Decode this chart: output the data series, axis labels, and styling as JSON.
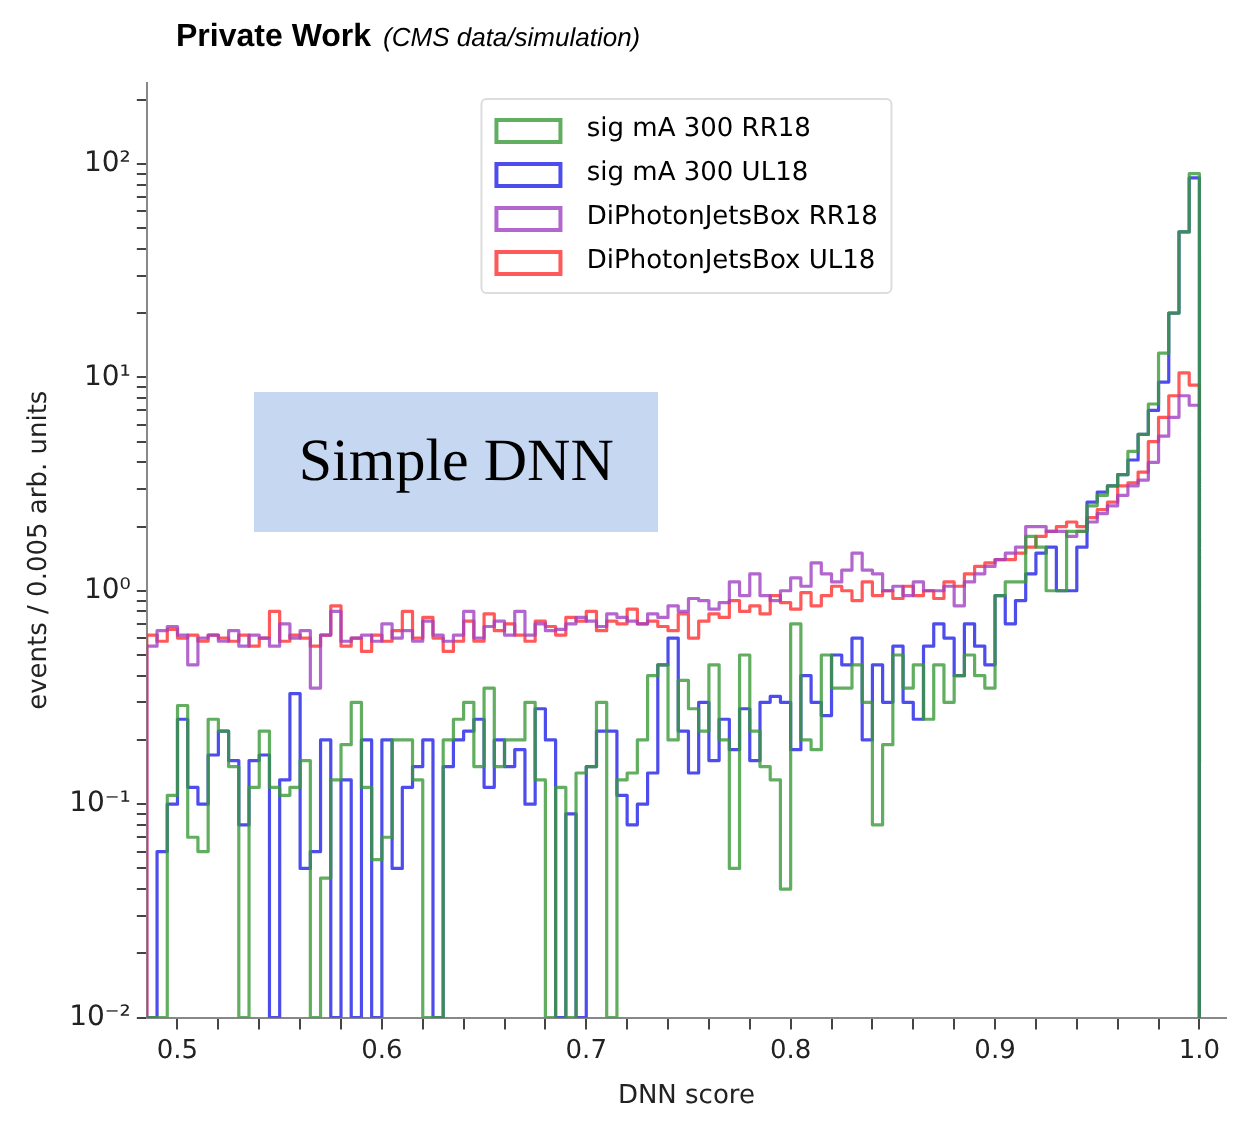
{
  "chart_data": {
    "type": "histogram",
    "title": "Private Work",
    "subtitle": "(CMS data/simulation)",
    "xlabel": "DNN score",
    "ylabel": "events / 0.005 arb. units",
    "annotations": [
      "Simple DNN"
    ],
    "log": "y",
    "legend": "top",
    "xlim": [
      0.485,
      1.013
    ],
    "ylim": [
      0.01,
      240
    ],
    "xticks": [
      0.5,
      {
        "value": 0.52,
        "label": null
      },
      {
        "value": 0.54,
        "label": null
      },
      {
        "value": 0.56,
        "label": null
      },
      {
        "value": 0.58,
        "label": null
      },
      0.6,
      {
        "value": 0.62,
        "label": null
      },
      {
        "value": 0.64,
        "label": null
      },
      {
        "value": 0.66,
        "label": null
      },
      {
        "value": 0.68,
        "label": null
      },
      0.7,
      {
        "value": 0.72,
        "label": null
      },
      {
        "value": 0.74,
        "label": null
      },
      {
        "value": 0.76,
        "label": null
      },
      {
        "value": 0.78,
        "label": null
      },
      0.8,
      {
        "value": 0.82,
        "label": null
      },
      {
        "value": 0.84,
        "label": null
      },
      {
        "value": 0.86,
        "label": null
      },
      {
        "value": 0.88,
        "label": null
      },
      0.9,
      {
        "value": 0.92,
        "label": null
      },
      {
        "value": 0.94,
        "label": null
      },
      {
        "value": 0.96,
        "label": null
      },
      {
        "value": 0.98,
        "label": null
      },
      {
        "value": 1.0,
        "label": "1.0"
      }
    ],
    "yticks": [
      {
        "value": 0.01,
        "label": "10⁻²"
      },
      {
        "value": 0.02,
        "label": null
      },
      {
        "value": 0.03,
        "label": null
      },
      {
        "value": 0.04,
        "label": null
      },
      {
        "value": 0.05,
        "label": null
      },
      {
        "value": 0.06,
        "label": null
      },
      {
        "value": 0.07,
        "label": null
      },
      {
        "value": 0.08,
        "label": null
      },
      {
        "value": 0.09,
        "label": null
      },
      {
        "value": 0.1,
        "label": "10⁻¹"
      },
      {
        "value": 0.2,
        "label": null
      },
      {
        "value": 0.3,
        "label": null
      },
      {
        "value": 0.4,
        "label": null
      },
      {
        "value": 0.5,
        "label": null
      },
      {
        "value": 0.6,
        "label": null
      },
      {
        "value": 0.7,
        "label": null
      },
      {
        "value": 0.8,
        "label": null
      },
      {
        "value": 0.9,
        "label": null
      },
      {
        "value": 1,
        "label": "10⁰"
      },
      {
        "value": 2,
        "label": null
      },
      {
        "value": 3,
        "label": null
      },
      {
        "value": 4,
        "label": null
      },
      {
        "value": 5,
        "label": null
      },
      {
        "value": 6,
        "label": null
      },
      {
        "value": 7,
        "label": null
      },
      {
        "value": 8,
        "label": null
      },
      {
        "value": 9,
        "label": null
      },
      {
        "value": 10,
        "label": "10¹"
      },
      {
        "value": 20,
        "label": null
      },
      {
        "value": 30,
        "label": null
      },
      {
        "value": 40,
        "label": null
      },
      {
        "value": 50,
        "label": null
      },
      {
        "value": 60,
        "label": null
      },
      {
        "value": 70,
        "label": null
      },
      {
        "value": 80,
        "label": null
      },
      {
        "value": 90,
        "label": null
      },
      {
        "value": 100,
        "label": "10²"
      },
      {
        "value": 200,
        "label": null
      }
    ],
    "bins": [
      0.485,
      0.49,
      0.495,
      0.5,
      0.505,
      0.51,
      0.515,
      0.52,
      0.525,
      0.53,
      0.535,
      0.54,
      0.545,
      0.55,
      0.555,
      0.56,
      0.565,
      0.57,
      0.575,
      0.58,
      0.585,
      0.59,
      0.595,
      0.6,
      0.605,
      0.61,
      0.615,
      0.62,
      0.625,
      0.63,
      0.635,
      0.64,
      0.645,
      0.65,
      0.655,
      0.66,
      0.665,
      0.67,
      0.675,
      0.68,
      0.685,
      0.69,
      0.695,
      0.7,
      0.705,
      0.71,
      0.715,
      0.72,
      0.725,
      0.73,
      0.735,
      0.74,
      0.745,
      0.75,
      0.755,
      0.76,
      0.765,
      0.77,
      0.775,
      0.78,
      0.785,
      0.79,
      0.795,
      0.8,
      0.805,
      0.81,
      0.815,
      0.82,
      0.825,
      0.83,
      0.835,
      0.84,
      0.845,
      0.85,
      0.855,
      0.86,
      0.865,
      0.87,
      0.875,
      0.88,
      0.885,
      0.89,
      0.895,
      0.9,
      0.905,
      0.91,
      0.915,
      0.92,
      0.925,
      0.93,
      0.935,
      0.94,
      0.945,
      0.95,
      0.955,
      0.96,
      0.965,
      0.97,
      0.975,
      0.98,
      0.985,
      0.99,
      0.995,
      1.0
    ],
    "series": [
      {
        "name": "sig mA 300 RR18",
        "color": "#3a9a3a",
        "values": [
          null,
          null,
          0.11,
          0.29,
          0.07,
          0.06,
          0.25,
          0.22,
          0.15,
          null,
          0.12,
          0.22,
          0.12,
          0.11,
          0.12,
          0.16,
          null,
          0.045,
          0.13,
          0.19,
          0.3,
          0.12,
          0.055,
          0.07,
          0.2,
          0.2,
          0.13,
          null,
          null,
          0.2,
          0.25,
          0.3,
          0.15,
          0.35,
          0.15,
          0.2,
          0.2,
          0.3,
          0.13,
          null,
          0.12,
          null,
          0.14,
          0.15,
          0.3,
          null,
          0.13,
          0.14,
          0.2,
          0.4,
          0.45,
          0.2,
          0.38,
          0.28,
          0.22,
          0.45,
          0.2,
          0.05,
          0.5,
          0.22,
          0.15,
          0.13,
          0.04,
          0.7,
          0.2,
          0.18,
          0.5,
          0.35,
          0.35,
          0.45,
          0.3,
          0.08,
          0.19,
          0.5,
          0.35,
          0.45,
          0.25,
          0.45,
          0.3,
          0.4,
          0.5,
          0.4,
          0.35,
          0.95,
          1.1,
          1.1,
          1.8,
          1.6,
          1,
          1,
          1.9,
          1.9,
          2.5,
          2.8,
          3.1,
          3.5,
          4.5,
          5.4,
          7.5,
          13,
          20,
          48,
          90
        ]
      },
      {
        "name": "sig mA 300 UL18",
        "color": "#2020e8",
        "values": [
          null,
          0.06,
          0.1,
          0.25,
          0.12,
          0.1,
          0.17,
          0.22,
          0.16,
          0.08,
          0.16,
          0.17,
          null,
          0.13,
          0.33,
          0.05,
          0.06,
          0.2,
          null,
          0.13,
          null,
          0.2,
          null,
          0.2,
          0.05,
          0.12,
          0.15,
          0.2,
          null,
          0.15,
          0.2,
          0.22,
          0.25,
          0.12,
          0.2,
          0.15,
          0.18,
          0.1,
          0.28,
          0.2,
          null,
          0.09,
          null,
          0.15,
          0.22,
          0.22,
          0.11,
          0.08,
          0.1,
          0.14,
          0.45,
          0.6,
          0.22,
          0.14,
          0.3,
          0.16,
          0.25,
          0.18,
          0.28,
          0.16,
          0.3,
          0.32,
          0.3,
          0.18,
          0.4,
          0.3,
          0.26,
          0.5,
          0.45,
          0.6,
          0.2,
          0.45,
          0.3,
          0.55,
          0.3,
          0.25,
          0.55,
          0.7,
          0.6,
          0.4,
          0.7,
          0.55,
          0.45,
          0.95,
          0.7,
          0.9,
          1.2,
          1.5,
          1.6,
          1,
          1,
          1.6,
          2.6,
          2.9,
          3.1,
          3.5,
          4.1,
          5.4,
          7,
          9.5,
          20,
          48,
          86
        ]
      },
      {
        "name": "DiPhotonJetsBox RR18",
        "color": "#a040c0",
        "values": [
          0.55,
          0.65,
          0.68,
          0.62,
          0.45,
          0.6,
          0.62,
          0.58,
          0.65,
          0.55,
          0.62,
          0.6,
          0.55,
          0.7,
          0.6,
          0.65,
          0.35,
          0.62,
          0.8,
          0.58,
          0.6,
          0.62,
          0.58,
          0.7,
          0.6,
          0.65,
          0.58,
          0.72,
          0.62,
          0.58,
          0.62,
          0.8,
          0.6,
          0.68,
          0.72,
          0.62,
          0.8,
          0.62,
          0.7,
          0.65,
          0.66,
          0.7,
          0.75,
          0.72,
          0.68,
          0.78,
          0.75,
          0.72,
          0.7,
          0.78,
          0.75,
          0.85,
          0.8,
          0.92,
          0.9,
          0.82,
          0.88,
          1.1,
          0.95,
          1.2,
          0.95,
          0.9,
          1,
          1.15,
          1.05,
          1.35,
          1.2,
          1.1,
          1.25,
          1.5,
          1.25,
          1.2,
          1,
          1.05,
          0.95,
          1.1,
          1,
          1,
          1.05,
          0.85,
          1.1,
          1.2,
          1.3,
          1.4,
          1.5,
          1.6,
          2,
          2,
          1.9,
          1.9,
          1.8,
          1.9,
          2.1,
          2.3,
          2.5,
          2.8,
          3.1,
          3.3,
          4,
          5.3,
          6.5,
          8.2,
          7.4
        ]
      },
      {
        "name": "DiPhotonJetsBox UL18",
        "color": "#ff3030",
        "values": [
          0.62,
          0.58,
          0.66,
          0.6,
          0.62,
          0.58,
          0.62,
          0.6,
          0.58,
          0.62,
          0.55,
          0.6,
          0.8,
          0.58,
          0.62,
          0.6,
          0.55,
          0.62,
          0.85,
          0.55,
          0.6,
          0.52,
          0.62,
          0.58,
          0.65,
          0.8,
          0.6,
          0.75,
          0.6,
          0.52,
          0.58,
          0.72,
          0.58,
          0.78,
          0.65,
          0.7,
          0.62,
          0.58,
          0.72,
          0.68,
          0.62,
          0.75,
          0.72,
          0.8,
          0.65,
          0.72,
          0.7,
          0.82,
          0.7,
          0.72,
          0.68,
          0.65,
          0.78,
          0.6,
          0.72,
          0.78,
          0.75,
          0.9,
          0.8,
          0.85,
          0.78,
          0.95,
          0.88,
          0.82,
          0.98,
          0.85,
          0.95,
          1.05,
          1,
          0.9,
          1.1,
          0.95,
          1,
          0.92,
          1.05,
          0.95,
          1,
          0.92,
          1.1,
          1.05,
          1.2,
          1.3,
          1.35,
          1.4,
          1.4,
          1.5,
          1.6,
          1.8,
          1.9,
          2,
          2.1,
          2,
          2.2,
          2.4,
          2.6,
          3.1,
          3.2,
          3.6,
          5,
          6.5,
          8.2,
          10.5,
          9.2
        ]
      }
    ]
  }
}
